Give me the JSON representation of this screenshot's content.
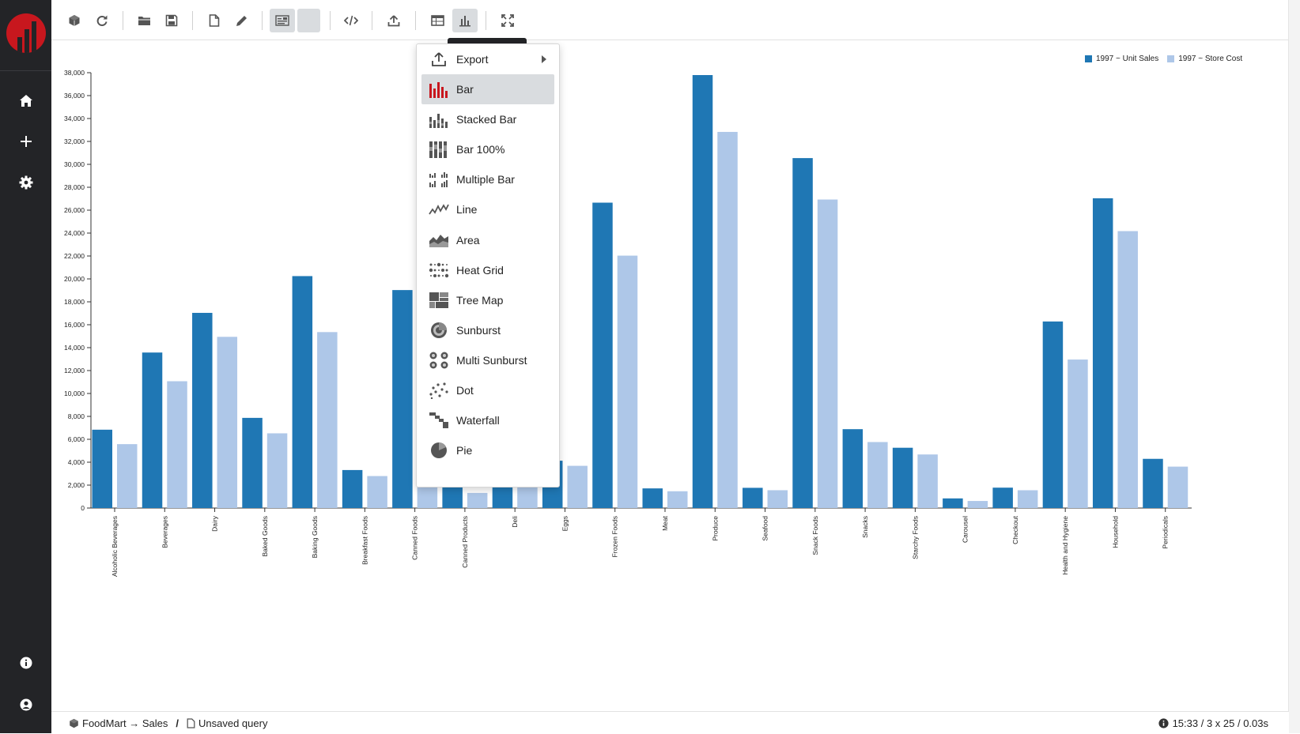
{
  "toolbar": {
    "buttons": [
      {
        "name": "cube-button",
        "icon": "cube-icon"
      },
      {
        "name": "refresh-button",
        "icon": "refresh-icon"
      },
      {
        "name": "open-button",
        "icon": "folder-icon"
      },
      {
        "name": "save-button",
        "icon": "save-icon"
      },
      {
        "name": "new-query-button",
        "icon": "file-icon"
      },
      {
        "name": "edit-button",
        "icon": "pencil-icon"
      },
      {
        "name": "layout-button",
        "icon": "layout-icon"
      },
      {
        "name": "blank-button",
        "icon": ""
      },
      {
        "name": "code-button",
        "icon": "code-icon"
      },
      {
        "name": "export-button",
        "icon": "upload-icon"
      },
      {
        "name": "table-view-button",
        "icon": "table-icon"
      },
      {
        "name": "chart-view-button",
        "icon": "bar-chart-icon"
      },
      {
        "name": "fullscreen-button",
        "icon": "expand-icon"
      }
    ]
  },
  "chart_menu": {
    "export_label": "Export",
    "items": [
      {
        "label": "Bar",
        "icon": "bar-icon",
        "selected": true
      },
      {
        "label": "Stacked Bar",
        "icon": "stacked-bar-icon"
      },
      {
        "label": "Bar 100%",
        "icon": "bar-100-icon"
      },
      {
        "label": "Multiple Bar",
        "icon": "multiple-bar-icon"
      },
      {
        "label": "Line",
        "icon": "line-icon"
      },
      {
        "label": "Area",
        "icon": "area-icon"
      },
      {
        "label": "Heat Grid",
        "icon": "heat-grid-icon"
      },
      {
        "label": "Tree Map",
        "icon": "tree-map-icon"
      },
      {
        "label": "Sunburst",
        "icon": "sunburst-icon"
      },
      {
        "label": "Multi Sunburst",
        "icon": "multi-sunburst-icon"
      },
      {
        "label": "Dot",
        "icon": "dot-icon"
      },
      {
        "label": "Waterfall",
        "icon": "waterfall-icon"
      },
      {
        "label": "Pie",
        "icon": "pie-icon"
      }
    ]
  },
  "chart_data": {
    "type": "bar",
    "title": "",
    "xlabel": "",
    "ylabel": "",
    "ylim": [
      0,
      38000
    ],
    "yticks": [
      "0",
      "2,000",
      "4,000",
      "6,000",
      "8,000",
      "10,000",
      "12,000",
      "14,000",
      "16,000",
      "18,000",
      "20,000",
      "22,000",
      "24,000",
      "26,000",
      "28,000",
      "30,000",
      "32,000",
      "34,000",
      "36,000",
      "38,000"
    ],
    "legend_position": "top-right",
    "grid": false,
    "categories": [
      "Alcoholic Beverages",
      "Beverages",
      "Dairy",
      "Baked Goods",
      "Baking Goods",
      "Breakfast Foods",
      "Canned Foods",
      "Canned Products",
      "Deli",
      "Eggs",
      "Frozen Foods",
      "Meat",
      "Produce",
      "Seafood",
      "Snack Foods",
      "Snacks",
      "Starchy Foods",
      "Carousel",
      "Checkout",
      "Health and Hygiene",
      "Household",
      "Periodicals"
    ],
    "series": [
      {
        "name": "1997 ~ Unit Sales",
        "color": "#1f77b4",
        "values": [
          6838,
          13573,
          17036,
          7870,
          20245,
          3317,
          19026,
          1812,
          12037,
          4132,
          26655,
          1714,
          37792,
          1764,
          30545,
          6884,
          5262,
          841,
          1779,
          16284,
          27038,
          4294
        ]
      },
      {
        "name": "1997 ~ Store Cost",
        "color": "#aec7e8",
        "values": [
          5577,
          11069,
          14943,
          6521,
          15358,
          2792,
          15837,
          1318,
          10075,
          3685,
          22031,
          1465,
          32831,
          1555,
          26930,
          5760,
          4676,
          616,
          1553,
          12962,
          24171,
          3614
        ]
      }
    ]
  },
  "status": {
    "cube_path": "FoodMart → Sales",
    "query_name": "Unsaved query",
    "info": "15:33 / 3 x 25 / 0.03s"
  }
}
